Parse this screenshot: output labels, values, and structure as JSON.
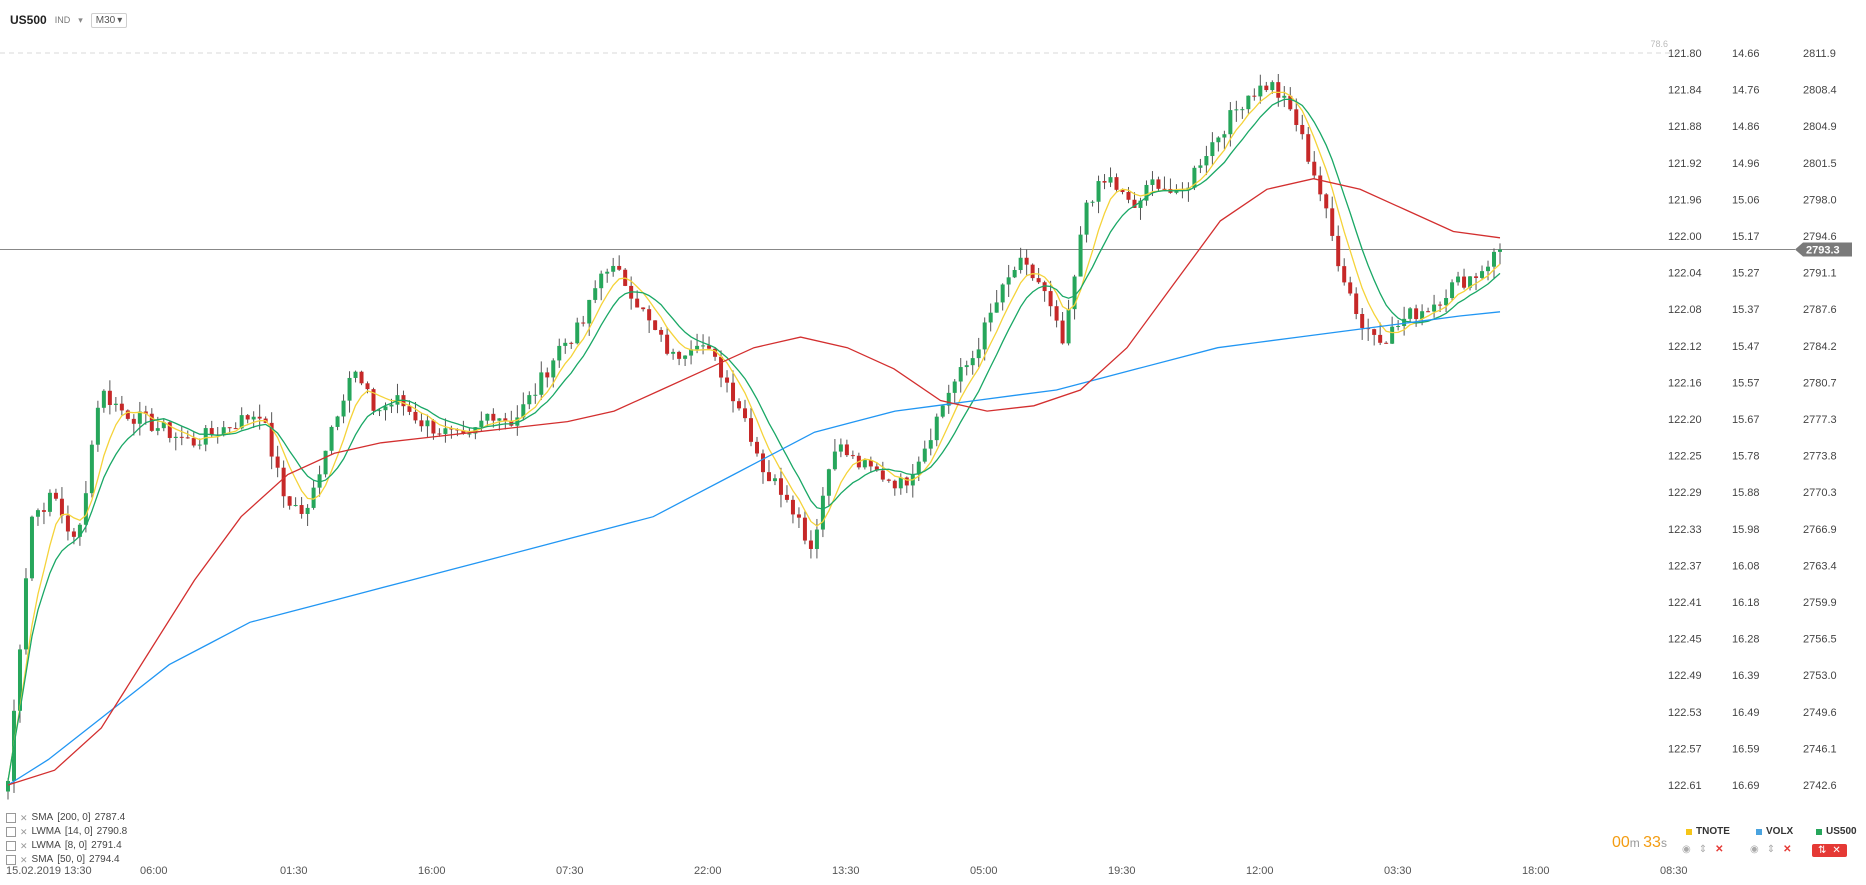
{
  "header": {
    "symbol": "US500",
    "type_chip": "IND",
    "timeframe": "M30"
  },
  "overlay_series": [
    {
      "name": "TNOTE",
      "color": "#f5c518"
    },
    {
      "name": "VOLX",
      "color": "#4aa3df"
    },
    {
      "name": "US500",
      "color": "#26a65b"
    }
  ],
  "indicators": [
    {
      "label": "SMA",
      "params": "[200,  0]",
      "value": "2787.4"
    },
    {
      "label": "LWMA",
      "params": "[14,  0]",
      "value": "2790.8"
    },
    {
      "label": "LWMA",
      "params": "[8,  0]",
      "value": "2791.4"
    },
    {
      "label": "SMA",
      "params": "[50,  0]",
      "value": "2794.4"
    }
  ],
  "timer": {
    "m": "00",
    "s": "33"
  },
  "fib_label": "78.6",
  "chart_data": {
    "type": "candlestick",
    "x_labels": [
      "15.02.2019  13:30",
      "06:00",
      "01:30",
      "16:00",
      "07:30",
      "22:00",
      "13:30",
      "05:00",
      "19:30",
      "12:00",
      "03:30",
      "18:00",
      "08:30"
    ],
    "axis_tnote": [
      "121.80",
      "121.84",
      "121.88",
      "121.92",
      "121.96",
      "122.00",
      "122.04",
      "122.08",
      "122.12",
      "122.16",
      "122.20",
      "122.25",
      "122.29",
      "122.33",
      "122.37",
      "122.41",
      "122.45",
      "122.49",
      "122.53",
      "122.57",
      "122.61"
    ],
    "axis_volx": [
      "14.66",
      "14.76",
      "14.86",
      "14.96",
      "15.06",
      "15.17",
      "15.27",
      "15.37",
      "15.47",
      "15.57",
      "15.67",
      "15.78",
      "15.88",
      "15.98",
      "16.08",
      "16.18",
      "16.28",
      "16.39",
      "16.49",
      "16.59",
      "16.69"
    ],
    "axis_us500": [
      "2811.9",
      "2808.4",
      "2804.9",
      "2801.5",
      "2798.0",
      "2794.6",
      "2791.1",
      "2787.6",
      "2784.2",
      "2780.7",
      "2777.3",
      "2773.8",
      "2770.3",
      "2766.9",
      "2763.4",
      "2759.9",
      "2756.5",
      "2753.0",
      "2749.6",
      "2746.1",
      "2742.6"
    ],
    "y_range": [
      2742.6,
      2811.9
    ],
    "last_price": "2793.3",
    "close_path": [
      2743,
      2768,
      2770,
      2765,
      2780,
      2778,
      2777,
      2776,
      2775,
      2776,
      2777,
      2778,
      2770,
      2768,
      2776,
      2782,
      2778,
      2779,
      2777,
      2776,
      2775,
      2778,
      2777,
      2780,
      2784,
      2786,
      2792,
      2790,
      2786,
      2783,
      2785,
      2782,
      2778,
      2772,
      2770,
      2765,
      2775,
      2773,
      2772,
      2771,
      2775,
      2780,
      2783,
      2788,
      2792,
      2790,
      2784,
      2798,
      2800,
      2797,
      2800,
      2798,
      2802,
      2805,
      2808,
      2809,
      2806,
      2800,
      2792,
      2786,
      2785,
      2787,
      2788,
      2790,
      2791,
      2793.3
    ],
    "lines": [
      {
        "id": "sma200",
        "color": "#2196f3",
        "values": [
          2742.6,
          2745,
          2748,
          2751,
          2754,
          2756,
          2758,
          2759,
          2760,
          2761,
          2762,
          2763,
          2764,
          2765,
          2766,
          2767,
          2768,
          2770,
          2772,
          2774,
          2776,
          2777,
          2778,
          2778.5,
          2779,
          2779.5,
          2780,
          2781,
          2782,
          2783,
          2784,
          2784.5,
          2785,
          2785.5,
          2786,
          2786.5,
          2787,
          2787.4
        ]
      },
      {
        "id": "sma50",
        "color": "#d32f2f",
        "values": [
          2742.6,
          2744,
          2748,
          2755,
          2762,
          2768,
          2772,
          2774,
          2775,
          2775.5,
          2776,
          2776.5,
          2777,
          2778,
          2780,
          2782,
          2784,
          2785,
          2784,
          2782,
          2779,
          2778,
          2778.5,
          2780,
          2784,
          2790,
          2796,
          2799,
          2800,
          2799,
          2797,
          2795,
          2794.4
        ]
      }
    ]
  }
}
